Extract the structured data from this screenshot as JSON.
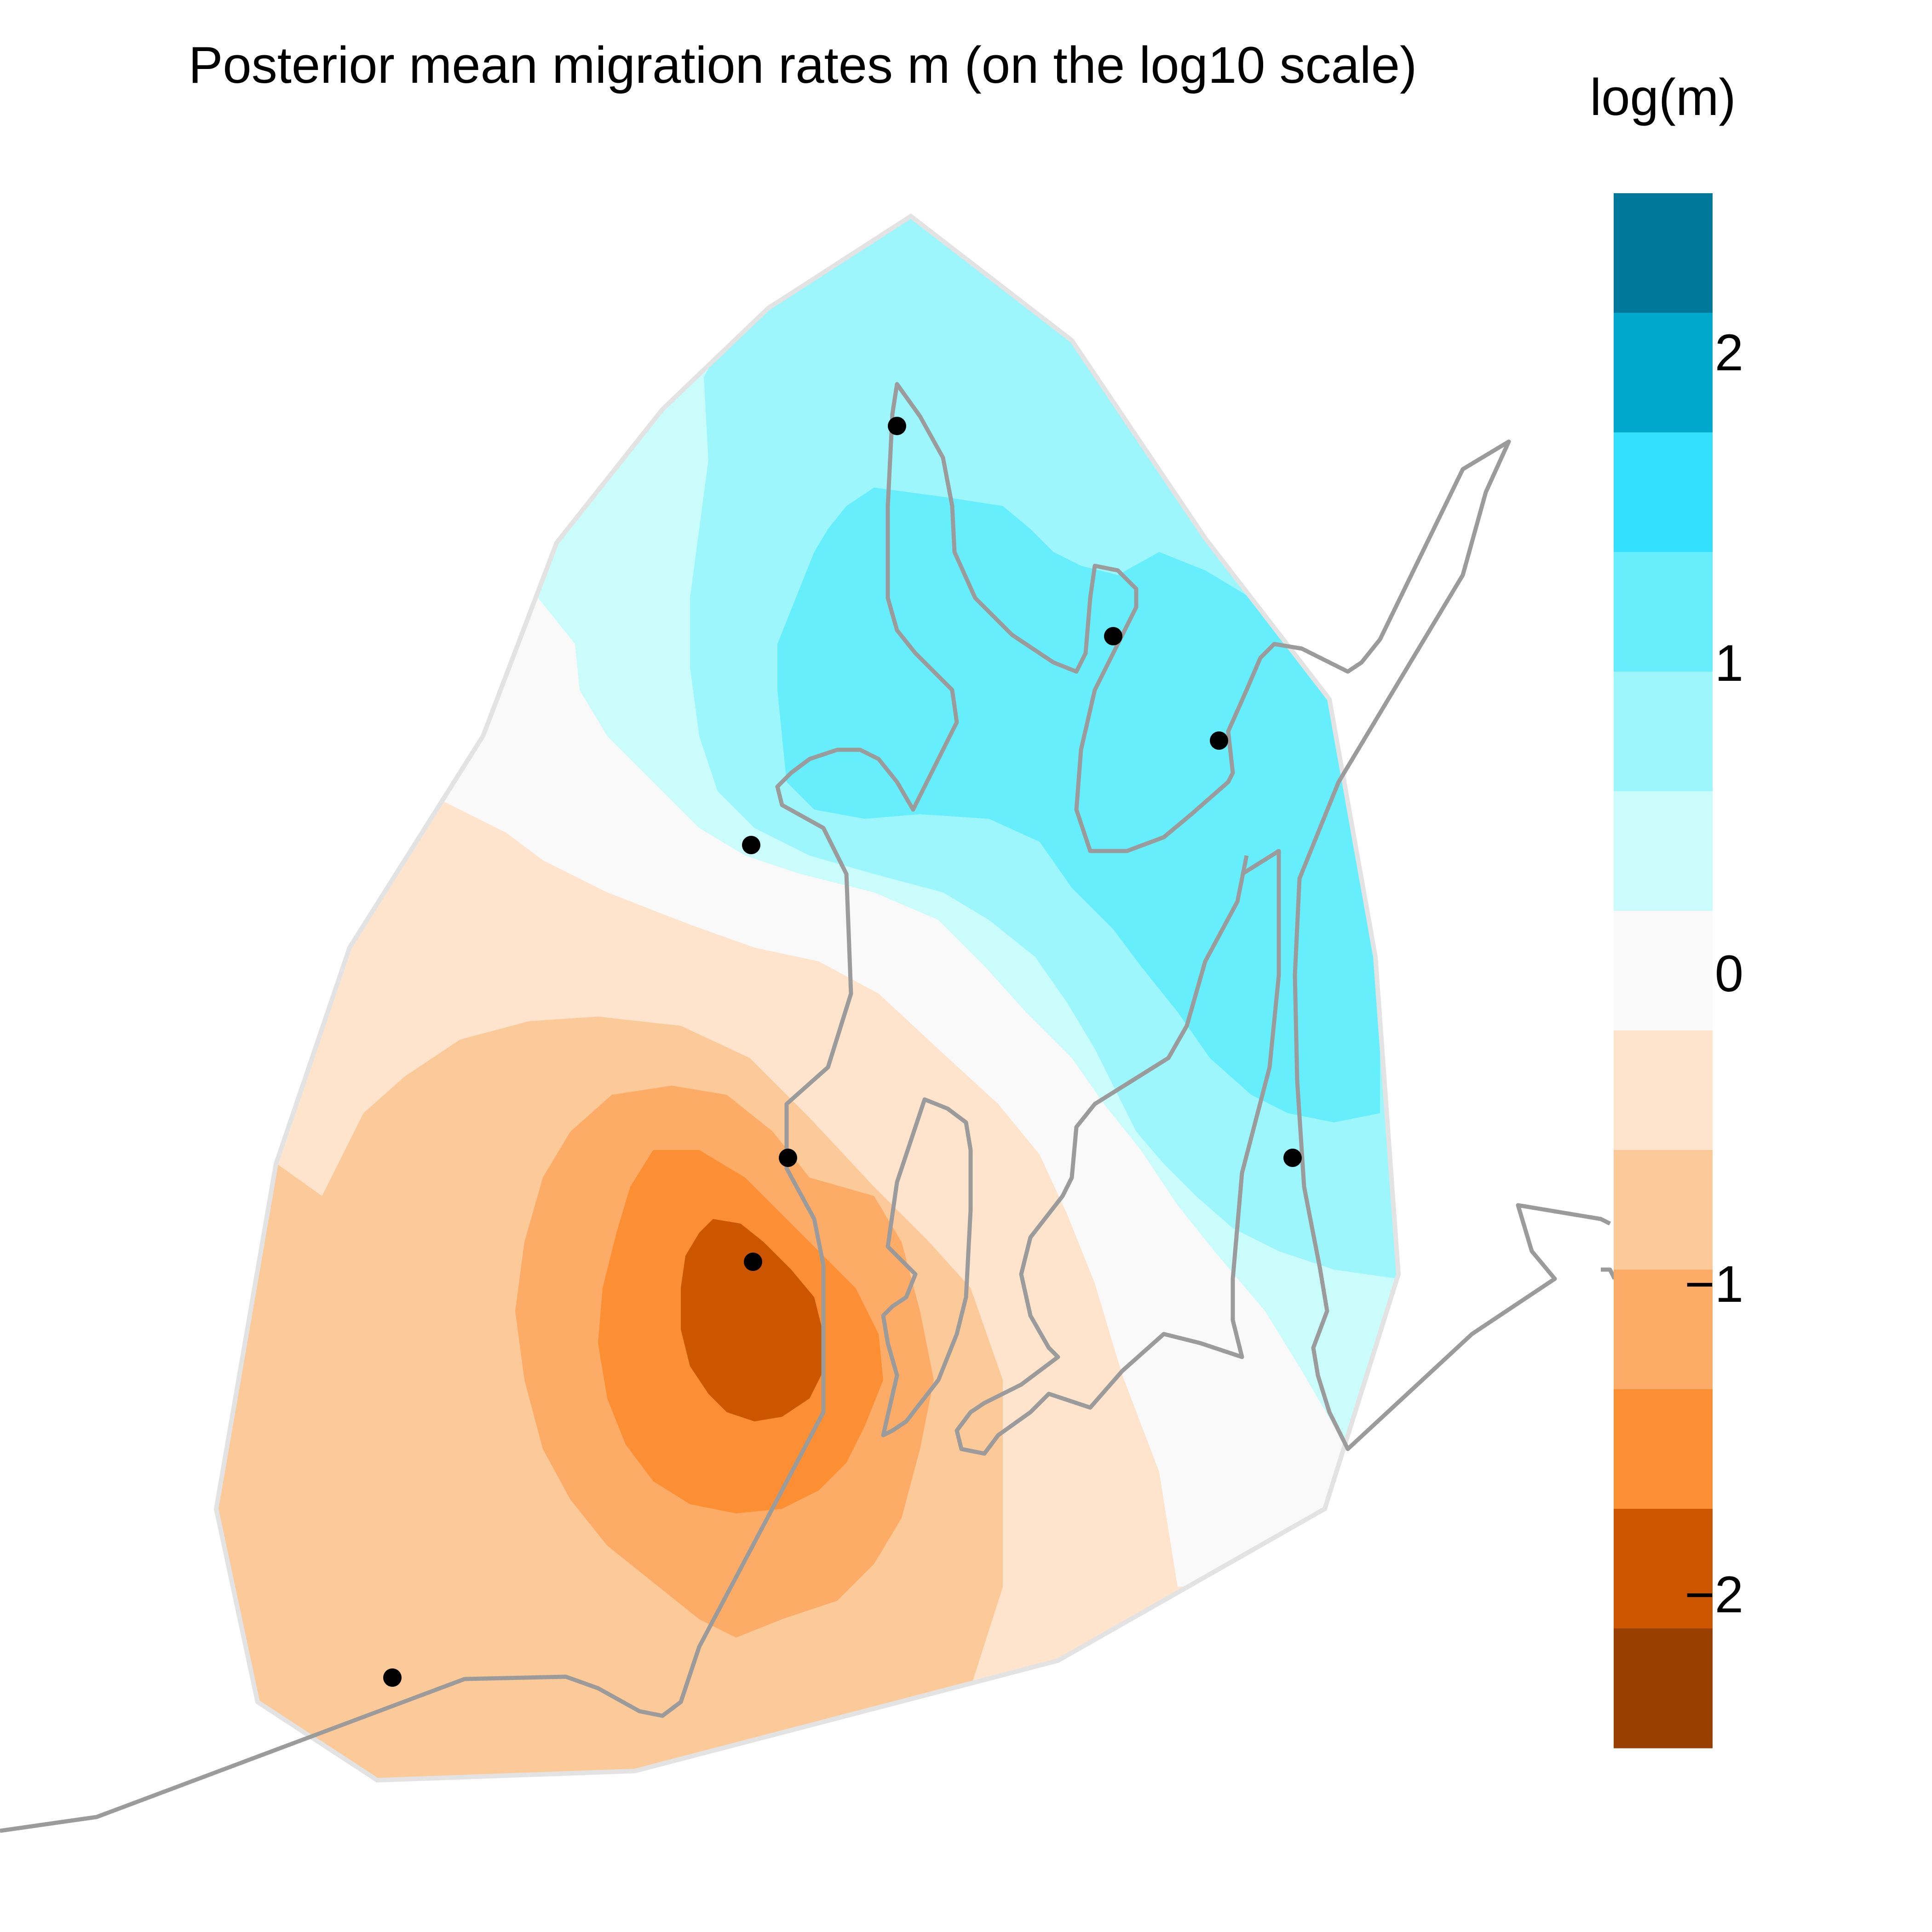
{
  "title": "Posterior mean migration rates m (on the log10 scale)",
  "legend": {
    "title": "log(m)",
    "tick_labels": [
      "2",
      "1",
      "0",
      "−1",
      "−2"
    ],
    "tick_values": [
      2,
      1,
      0,
      -1,
      -2
    ],
    "range": [
      -2.5,
      2.5
    ],
    "band_width": 0.385,
    "bands_top_to_bottom": [
      "#00789A",
      "#00A9CB",
      "#33E1FF",
      "#66EEFC",
      "#9CF6FC",
      "#CBFCFC",
      "#F9F9F9",
      "#FEE4CC",
      "#FCC999",
      "#FCAC66",
      "#FC8E33",
      "#CC5500",
      "#993F00"
    ]
  },
  "colors": {
    "habitat_outline": "#E3E3E3",
    "coastline": "#9B9B9B",
    "deme": "#000000"
  },
  "deme_count": 9
}
